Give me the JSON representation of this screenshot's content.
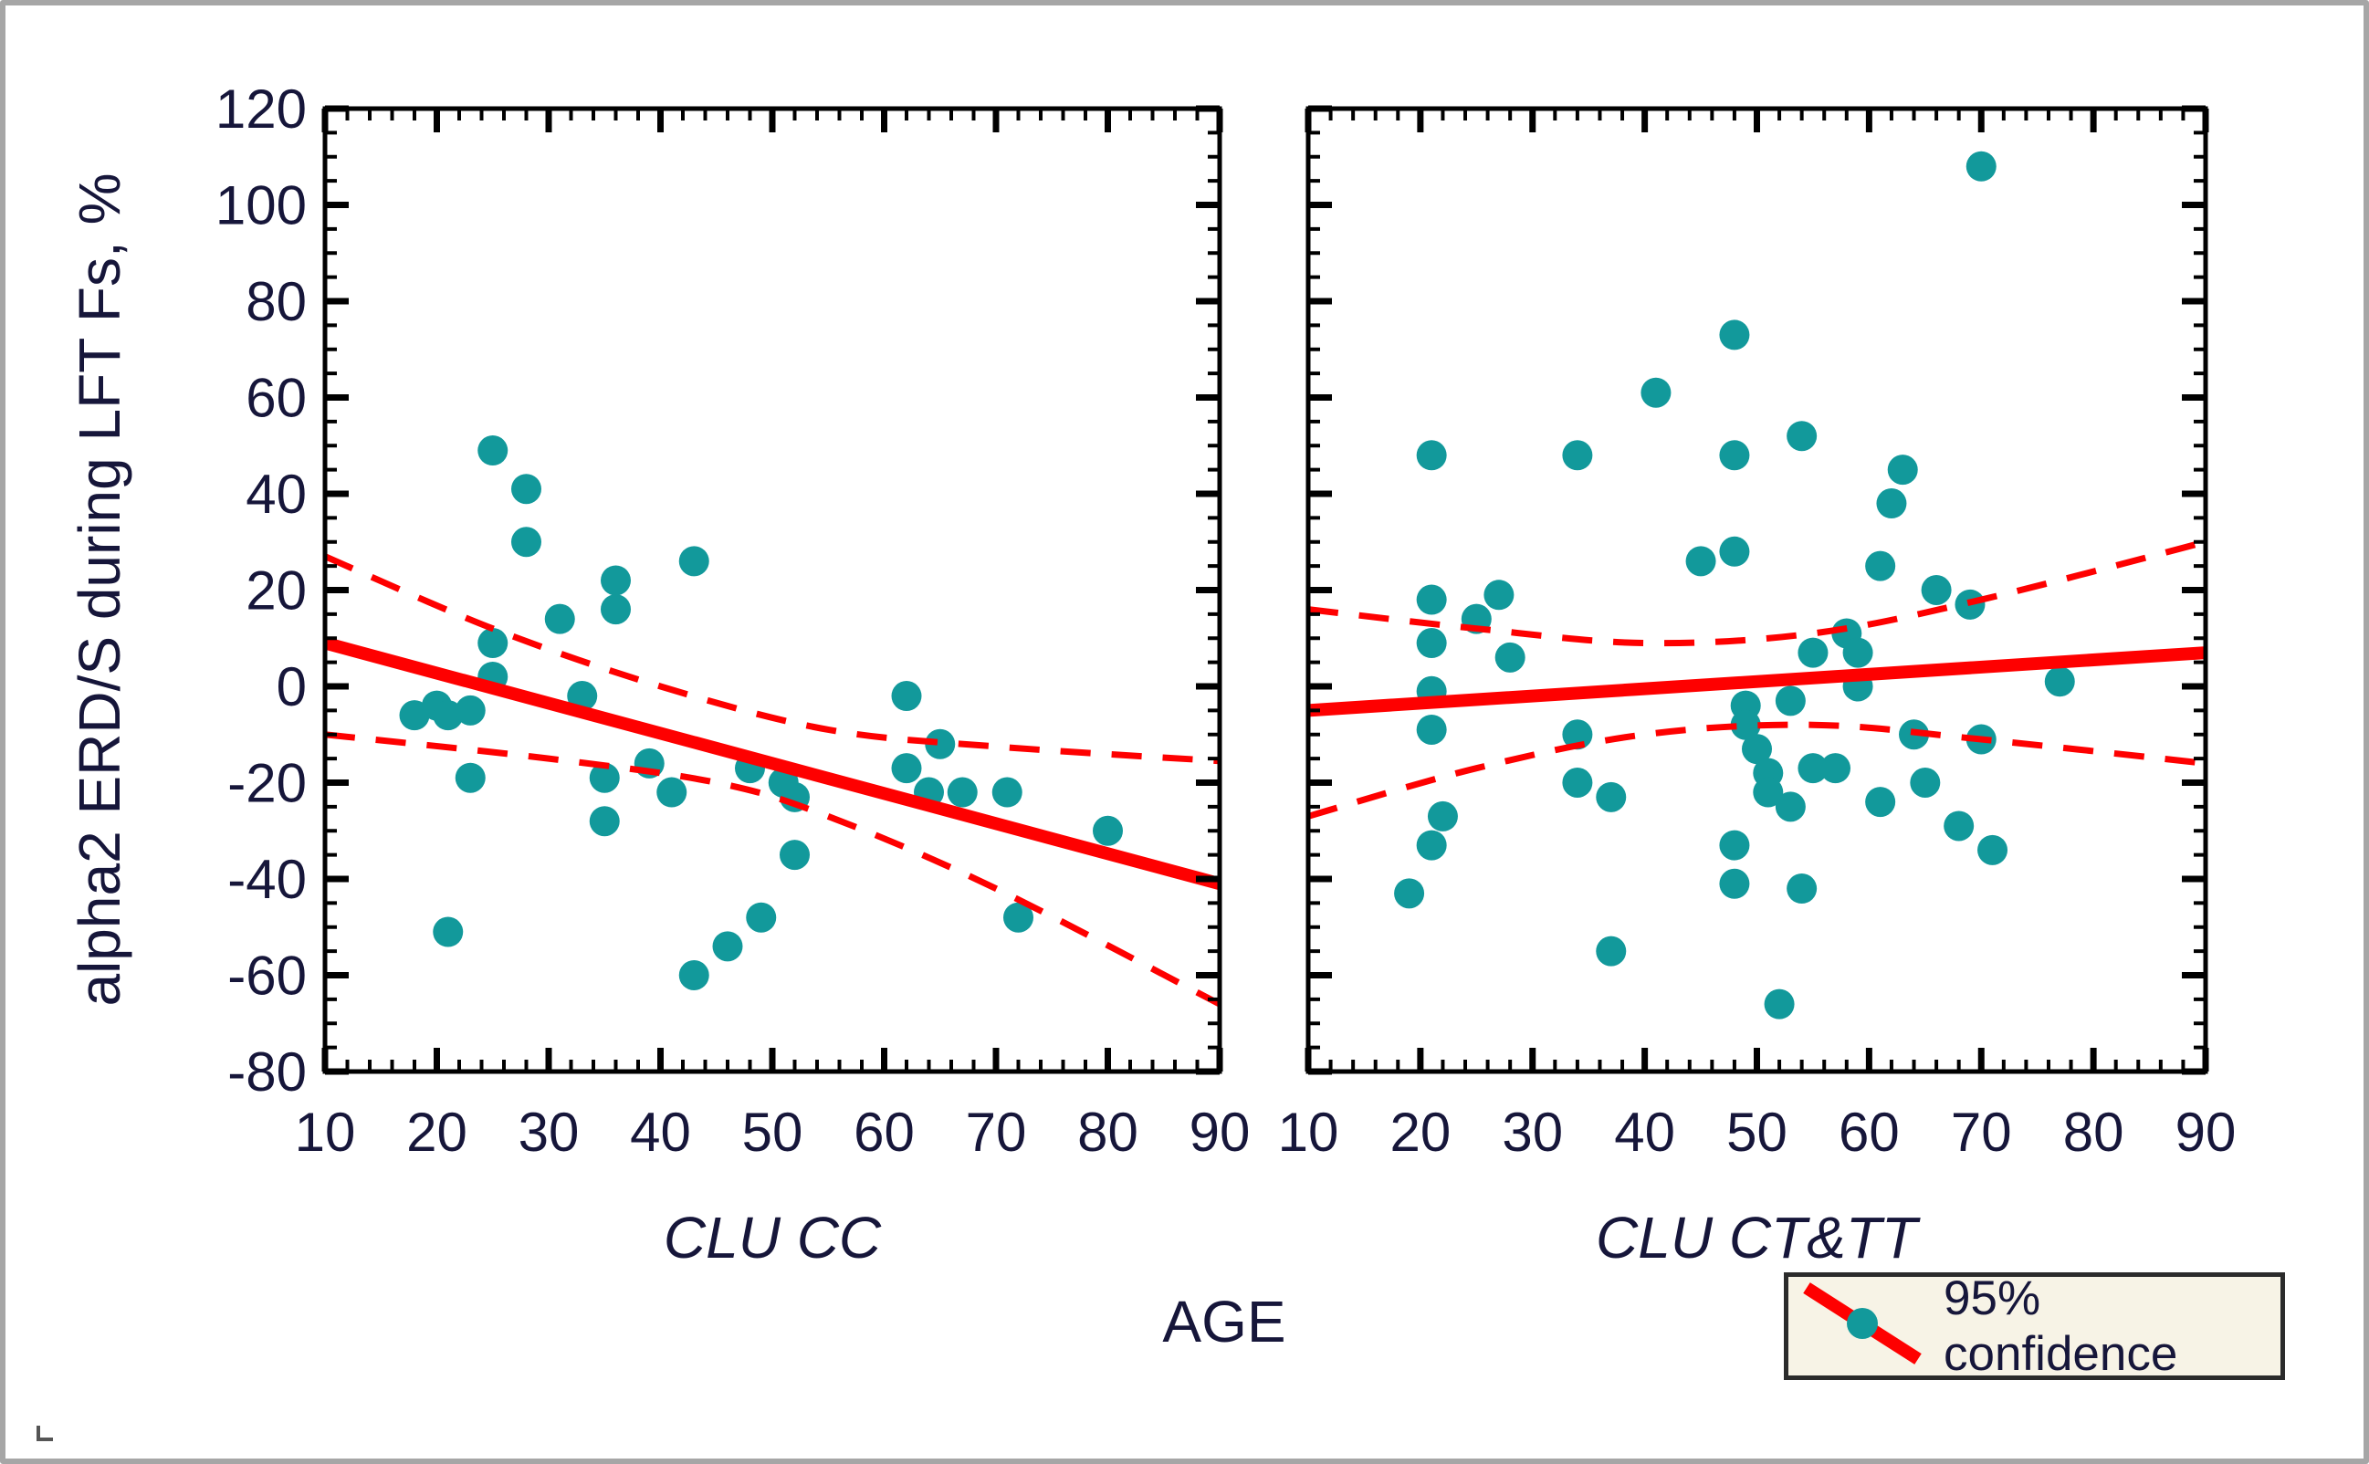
{
  "chart_data": {
    "type": "scatter",
    "title": "",
    "xlabel": "AGE",
    "ylabel": "alpha2 ERD/S during LFT Fs,  %",
    "xlim": [
      10,
      90
    ],
    "ylim": [
      -80,
      120
    ],
    "x_major_ticks": [
      10,
      20,
      30,
      40,
      50,
      60,
      70,
      80,
      90
    ],
    "x_minor_step": 2,
    "y_major_ticks": [
      -80,
      -60,
      -40,
      -20,
      0,
      20,
      40,
      60,
      80,
      100,
      120
    ],
    "y_minor_step": 5,
    "grid": false,
    "legend": {
      "label": "95% confidence",
      "position": "bottom-right"
    },
    "colors": {
      "points": "#12999b",
      "regression": "#fe0000",
      "text": "#16163a",
      "axis": "#000000",
      "legend_bg": "#f7f3e6"
    },
    "panels": [
      {
        "title": "CLU CC",
        "regression": {
          "x": [
            10,
            90
          ],
          "y": [
            9,
            -41
          ]
        },
        "ci_upper": [
          [
            10,
            27
          ],
          [
            25,
            12
          ],
          [
            40,
            0
          ],
          [
            55,
            -9
          ],
          [
            70,
            -12.5
          ],
          [
            90,
            -15.5
          ]
        ],
        "ci_lower": [
          [
            10,
            -10
          ],
          [
            30,
            -15
          ],
          [
            45,
            -20
          ],
          [
            55,
            -27
          ],
          [
            70,
            -42
          ],
          [
            90,
            -66
          ]
        ],
        "points": [
          [
            25,
            49
          ],
          [
            28,
            41
          ],
          [
            28,
            30
          ],
          [
            43,
            26
          ],
          [
            36,
            22
          ],
          [
            36,
            16
          ],
          [
            31,
            14
          ],
          [
            25,
            9
          ],
          [
            25,
            2
          ],
          [
            33,
            -2
          ],
          [
            18,
            -6
          ],
          [
            20,
            -4
          ],
          [
            21,
            -6
          ],
          [
            23,
            -5
          ],
          [
            23,
            -19
          ],
          [
            35,
            -19
          ],
          [
            39,
            -16
          ],
          [
            41,
            -22
          ],
          [
            35,
            -28
          ],
          [
            48,
            -17
          ],
          [
            51,
            -20
          ],
          [
            52,
            -23
          ],
          [
            52,
            -35
          ],
          [
            62,
            -2
          ],
          [
            65,
            -12
          ],
          [
            62,
            -17
          ],
          [
            64,
            -22
          ],
          [
            67,
            -22
          ],
          [
            71,
            -22
          ],
          [
            80,
            -30
          ],
          [
            21,
            -51
          ],
          [
            43,
            -60
          ],
          [
            46,
            -54
          ],
          [
            49,
            -48
          ],
          [
            72,
            -48
          ]
        ]
      },
      {
        "title": "CLU CT&TT",
        "regression": {
          "x": [
            10,
            90
          ],
          "y": [
            -5,
            7
          ]
        },
        "ci_upper": [
          [
            10,
            16
          ],
          [
            25,
            12
          ],
          [
            40,
            9
          ],
          [
            55,
            11
          ],
          [
            70,
            18
          ],
          [
            90,
            30
          ]
        ],
        "ci_lower": [
          [
            10,
            -27
          ],
          [
            25,
            -17
          ],
          [
            40,
            -10
          ],
          [
            55,
            -8
          ],
          [
            70,
            -11
          ],
          [
            90,
            -16
          ]
        ],
        "points": [
          [
            70,
            108
          ],
          [
            48,
            73
          ],
          [
            41,
            61
          ],
          [
            54,
            52
          ],
          [
            21,
            48
          ],
          [
            34,
            48
          ],
          [
            48,
            48
          ],
          [
            63,
            45
          ],
          [
            62,
            38
          ],
          [
            48,
            28
          ],
          [
            45,
            26
          ],
          [
            61,
            25
          ],
          [
            66,
            20
          ],
          [
            69,
            17
          ],
          [
            27,
            19
          ],
          [
            21,
            18
          ],
          [
            25,
            14
          ],
          [
            58,
            11
          ],
          [
            21,
            9
          ],
          [
            59,
            7
          ],
          [
            55,
            7
          ],
          [
            28,
            6
          ],
          [
            77,
            1
          ],
          [
            59,
            0
          ],
          [
            21,
            -1
          ],
          [
            53,
            -3
          ],
          [
            49,
            -4
          ],
          [
            49,
            -8
          ],
          [
            21,
            -9
          ],
          [
            34,
            -10
          ],
          [
            64,
            -10
          ],
          [
            70,
            -11
          ],
          [
            50,
            -13
          ],
          [
            51,
            -18
          ],
          [
            55,
            -17
          ],
          [
            57,
            -17
          ],
          [
            34,
            -20
          ],
          [
            65,
            -20
          ],
          [
            51,
            -22
          ],
          [
            37,
            -23
          ],
          [
            61,
            -24
          ],
          [
            53,
            -25
          ],
          [
            22,
            -27
          ],
          [
            68,
            -29
          ],
          [
            21,
            -33
          ],
          [
            48,
            -33
          ],
          [
            71,
            -34
          ],
          [
            48,
            -41
          ],
          [
            54,
            -42
          ],
          [
            19,
            -43
          ],
          [
            37,
            -55
          ],
          [
            52,
            -66
          ]
        ]
      }
    ]
  }
}
